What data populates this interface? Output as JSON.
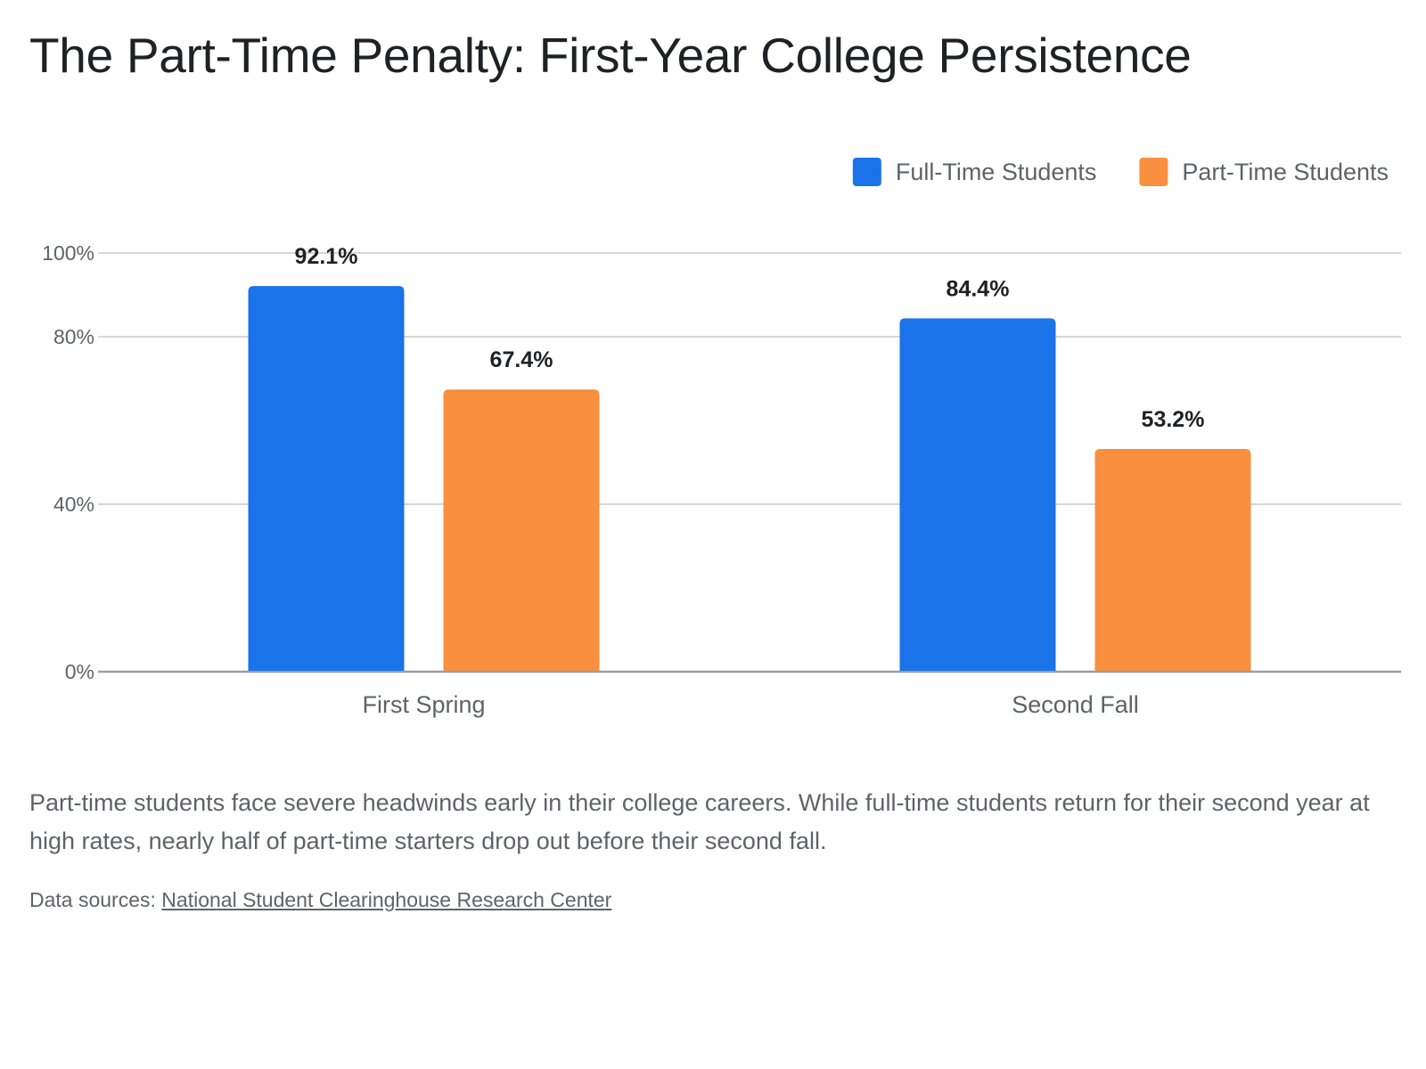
{
  "chart_data": {
    "type": "bar",
    "title": "The Part-Time Penalty: First-Year College Persistence",
    "categories": [
      "First Spring",
      "Second Fall"
    ],
    "series": [
      {
        "name": "Full-Time Students",
        "values": [
          92.1,
          84.4
        ],
        "color": "#1a73e8",
        "labels": [
          "92.1%",
          "84.4%"
        ]
      },
      {
        "name": "Part-Time Students",
        "values": [
          67.4,
          53.2
        ],
        "color": "#f89040",
        "labels": [
          "67.4%",
          "53.2%"
        ]
      }
    ],
    "ylim": [
      0,
      100
    ],
    "yticks": [
      0,
      40,
      80,
      100
    ],
    "ytick_labels": [
      "0%",
      "40%",
      "80%",
      "100%"
    ],
    "xlabel": "",
    "ylabel": "",
    "grid": true,
    "legend_position": "top-right"
  },
  "description": "Part-time students face severe headwinds early in their college careers. While full-time students return for their second year at high rates, nearly half of part-time starters drop out before their second fall.",
  "source": {
    "prefix": "Data sources: ",
    "link_text": "National Student Clearinghouse Research Center"
  }
}
